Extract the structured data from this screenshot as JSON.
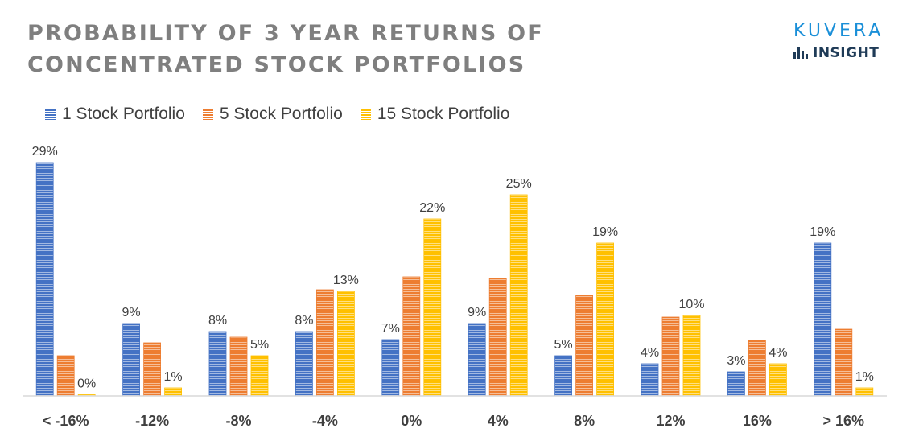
{
  "header": {
    "title": "PROBABILITY OF 3 YEAR RETURNS OF CONCENTRATED STOCK PORTFOLIOS",
    "logo_brand": "KUVERA",
    "logo_sub": "INSIGHT"
  },
  "colors": {
    "series1": "#4472c4",
    "series2": "#ed7d31",
    "series3": "#ffc000",
    "axis": "#d9d9d9",
    "label": "#404040"
  },
  "chart_data": {
    "type": "bar",
    "title": "PROBABILITY OF 3 YEAR RETURNS OF CONCENTRATED STOCK PORTFOLIOS",
    "xlabel": "",
    "ylabel": "",
    "categories": [
      "< -16%",
      "-12%",
      "-8%",
      "-4%",
      "0%",
      "4%",
      "8%",
      "12%",
      "16%",
      "> 16%"
    ],
    "series": [
      {
        "name": "1 Stock Portfolio",
        "values": [
          29,
          9,
          8,
          8,
          7,
          9,
          5,
          4,
          3,
          19
        ],
        "labels": [
          "29%",
          "9%",
          "8%",
          "8%",
          "7%",
          "9%",
          "5%",
          "4%",
          "3%",
          "19%"
        ],
        "labeled": true
      },
      {
        "name": "5 Stock Portfolio",
        "values": [
          5,
          6.6,
          7.3,
          13.2,
          14.8,
          14.6,
          12.5,
          9.8,
          6.9,
          8.3
        ],
        "labeled": false
      },
      {
        "name": "15 Stock Portfolio",
        "values": [
          0,
          1,
          5,
          13,
          22,
          25,
          19,
          10,
          4,
          1
        ],
        "labels": [
          "0%",
          "1%",
          "5%",
          "13%",
          "22%",
          "25%",
          "19%",
          "10%",
          "4%",
          "1%"
        ],
        "labeled": true
      }
    ],
    "ylim": [
      0,
      30
    ],
    "legend": "top-left",
    "grid": false
  }
}
